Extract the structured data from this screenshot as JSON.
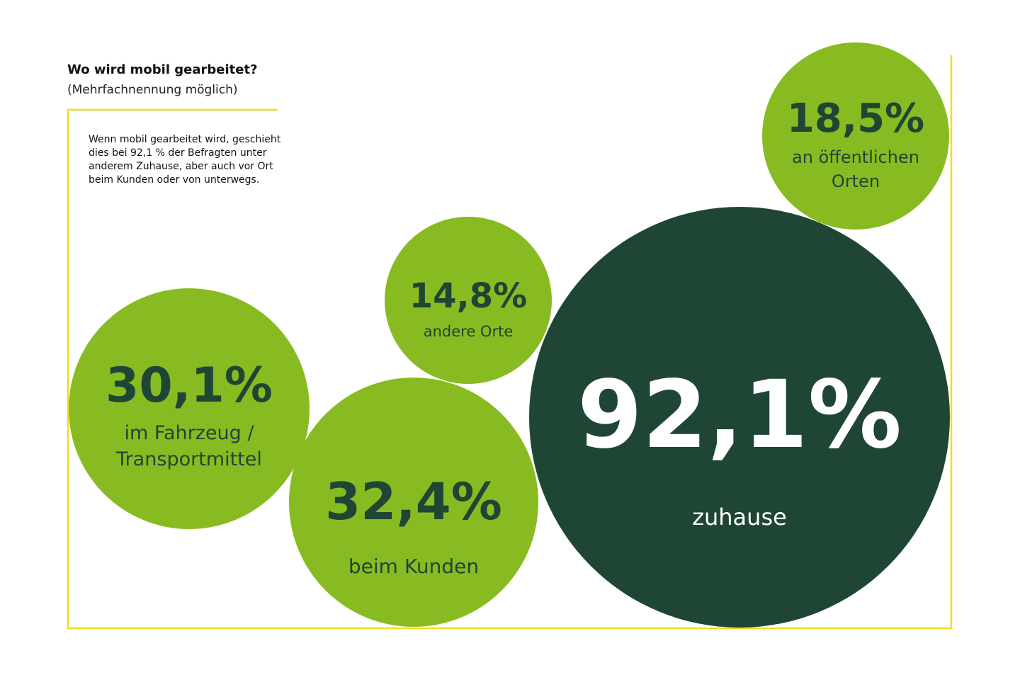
{
  "header": {
    "title": "Wo wird mobil gearbeitet?",
    "subtitle": "(Mehrfachnennung möglich)",
    "description": "Wenn mobil gearbeitet wird, geschieht dies bei 92,1 % der Befragten unter anderem Zuhause, aber auch vor Ort beim Kunden oder von unterwegs."
  },
  "colors": {
    "frame": "#f2dc1b",
    "light_green": "#88bb21",
    "dark_green": "#1f4634",
    "text_dark": "#1f4634",
    "text_light": "#ffffff"
  },
  "chart_data": {
    "type": "bubble",
    "title": "Wo wird mobil gearbeitet?",
    "subtitle": "(Mehrfachnennung möglich)",
    "unit": "%",
    "series": [
      {
        "name": "zuhause",
        "label_lines": [
          "zuhause"
        ],
        "value": 92.1,
        "display": "92,1%",
        "fill": "#1f4634",
        "text_color": "#ffffff"
      },
      {
        "name": "beim Kunden",
        "label_lines": [
          "beim Kunden"
        ],
        "value": 32.4,
        "display": "32,4%",
        "fill": "#88bb21",
        "text_color": "#1f4634"
      },
      {
        "name": "im Fahrzeug / Transportmittel",
        "label_lines": [
          "im Fahrzeug /",
          "Transportmittel"
        ],
        "value": 30.1,
        "display": "30,1%",
        "fill": "#88bb21",
        "text_color": "#1f4634"
      },
      {
        "name": "an öffentlichen Orten",
        "label_lines": [
          "an öffentlichen",
          "Orten"
        ],
        "value": 18.5,
        "display": "18,5%",
        "fill": "#88bb21",
        "text_color": "#1f4634"
      },
      {
        "name": "andere Orte",
        "label_lines": [
          "andere Orte"
        ],
        "value": 14.8,
        "display": "14,8%",
        "fill": "#88bb21",
        "text_color": "#1f4634"
      }
    ]
  }
}
